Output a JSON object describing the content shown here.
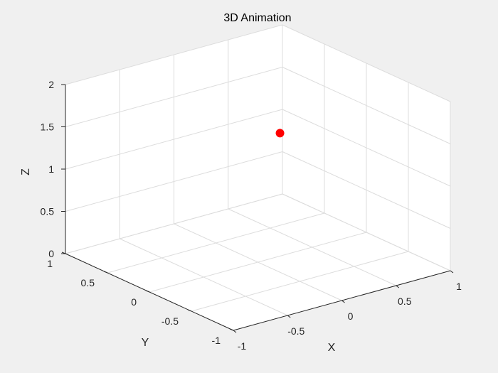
{
  "chart_data": {
    "type": "scatter",
    "title": "3D Animation",
    "xlabel": "X",
    "ylabel": "Y",
    "zlabel": "Z",
    "xlim": [
      -1,
      1
    ],
    "ylim": [
      -1,
      1
    ],
    "zlim": [
      0,
      2
    ],
    "x_ticks": [
      -1,
      -0.5,
      0,
      0.5,
      1
    ],
    "y_ticks": [
      -1,
      -0.5,
      0,
      0.5,
      1
    ],
    "z_ticks": [
      0,
      0.5,
      1,
      1.5,
      2
    ],
    "x_tick_labels": [
      "-1",
      "-0.5",
      "0",
      "0.5",
      "1"
    ],
    "y_tick_labels": [
      "-1",
      "-0.5",
      "0",
      "0.5",
      "1"
    ],
    "z_tick_labels": [
      "0",
      "0.5",
      "1",
      "1.5",
      "2"
    ],
    "grid": true,
    "points": [
      {
        "x": 0.9,
        "y": 0.9,
        "z": 0.8
      }
    ],
    "marker_color": "#ff0000",
    "axes_background": "#ffffff",
    "figure_background": "#f0f0f0"
  }
}
